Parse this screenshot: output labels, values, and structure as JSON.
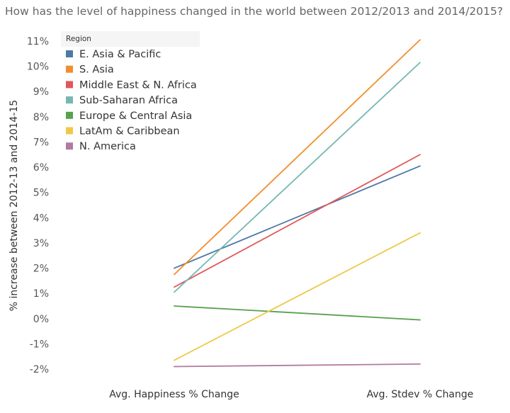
{
  "title": "How has the level of happiness changed in the world between 2012/2013 and 2014/2015?",
  "chart_data": {
    "type": "line",
    "title": "How has the level of happiness changed in the world between 2012/2013 and 2014/2015?",
    "ylabel": "% increase between 2012-13 and 2014-15",
    "xlabel": "",
    "categories": [
      "Avg. Happiness % Change",
      "Avg. Stdev % Change"
    ],
    "ylim": [
      -2,
      11
    ],
    "yticks": [
      11,
      10,
      9,
      8,
      7,
      6,
      5,
      4,
      3,
      2,
      1,
      0,
      -1,
      -2
    ],
    "ytick_labels": [
      "11%",
      "10%",
      "9%",
      "8%",
      "7%",
      "6%",
      "5%",
      "4%",
      "3%",
      "2%",
      "1%",
      "0%",
      "-1%",
      "-2%"
    ],
    "grid": false,
    "legend": {
      "title": "Region",
      "position": "top-left"
    },
    "series": [
      {
        "name": "E. Asia & Pacific",
        "color": "#4e79a7",
        "values": [
          2.0,
          6.05
        ]
      },
      {
        "name": "S. Asia",
        "color": "#f28e2b",
        "values": [
          1.75,
          11.05
        ]
      },
      {
        "name": "Middle East & N. Africa",
        "color": "#e15759",
        "values": [
          1.25,
          6.5
        ]
      },
      {
        "name": "Sub-Saharan Africa",
        "color": "#76b7b2",
        "values": [
          1.05,
          10.15
        ]
      },
      {
        "name": "Europe & Central Asia",
        "color": "#59a14f",
        "values": [
          0.5,
          -0.05
        ]
      },
      {
        "name": "LatAm & Caribbean",
        "color": "#edc948",
        "values": [
          -1.65,
          3.4
        ]
      },
      {
        "name": "N. America",
        "color": "#b07aa1",
        "values": [
          -1.9,
          -1.8
        ]
      }
    ]
  }
}
